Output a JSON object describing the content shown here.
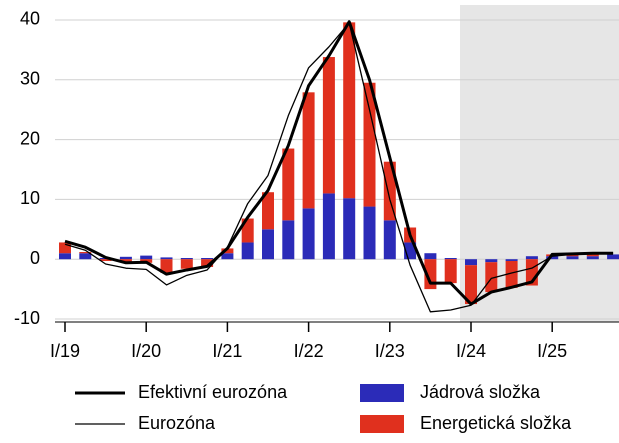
{
  "chart_data": {
    "type": "bar",
    "categories": [
      "I/19",
      null,
      null,
      null,
      "I/20",
      null,
      null,
      null,
      "I/21",
      null,
      null,
      null,
      "I/22",
      null,
      null,
      null,
      "I/23",
      null,
      null,
      null,
      "I/24",
      null,
      null,
      null,
      "I/25",
      null,
      null,
      null
    ],
    "series": [
      {
        "name": "Jádrová složka",
        "color": "#2b2bb8",
        "values": [
          1,
          1,
          0.2,
          0.4,
          0.6,
          0.3,
          0.2,
          0.2,
          1,
          2.8,
          5,
          6.5,
          8.5,
          11,
          10.2,
          8.8,
          6.5,
          2.8,
          1,
          0.2,
          -1,
          -0.5,
          -0.3,
          0.5,
          0.5,
          0.5,
          0.5,
          0.8
        ]
      },
      {
        "name": "Energetická složka",
        "color": "#e0301e",
        "values": [
          1.8,
          0.2,
          -0.3,
          -0.5,
          -0.6,
          -2.3,
          -1.6,
          -1.3,
          0.8,
          4,
          6.2,
          12,
          19.4,
          22.8,
          29.4,
          20.7,
          9.8,
          2.5,
          -5,
          -4,
          -6.5,
          -5,
          -4.5,
          -4.4,
          0.3,
          0.2,
          0.3,
          0
        ]
      }
    ],
    "lines": [
      {
        "name": "Efektivní eurozóna",
        "color": "#000000",
        "width": 3,
        "values": [
          3,
          2,
          0.3,
          -0.6,
          -0.5,
          -2.5,
          -1.8,
          -1.2,
          1.8,
          7,
          11.5,
          19,
          29,
          34,
          39.7,
          30,
          17,
          4,
          -4,
          -4,
          -7.5,
          -5.5,
          -4.7,
          -3.8,
          0.8,
          0.9,
          1,
          1
        ]
      },
      {
        "name": "Eurozóna",
        "color": "#000000",
        "width": 1.3,
        "values": [
          2.5,
          1.5,
          -0.8,
          -1.5,
          -1.7,
          -4.3,
          -2.7,
          -1.8,
          2,
          9.3,
          14,
          24,
          32,
          35.5,
          39.5,
          25,
          10,
          -1,
          -8.8,
          -8.5,
          -7.7,
          -3.2,
          -2.3,
          -1.5,
          0.5,
          0.8,
          1,
          1
        ]
      }
    ],
    "ylim": [
      -10.5,
      42.5
    ],
    "yticks": [
      -10,
      0,
      10,
      20,
      30,
      40
    ],
    "grid": true
  }
}
